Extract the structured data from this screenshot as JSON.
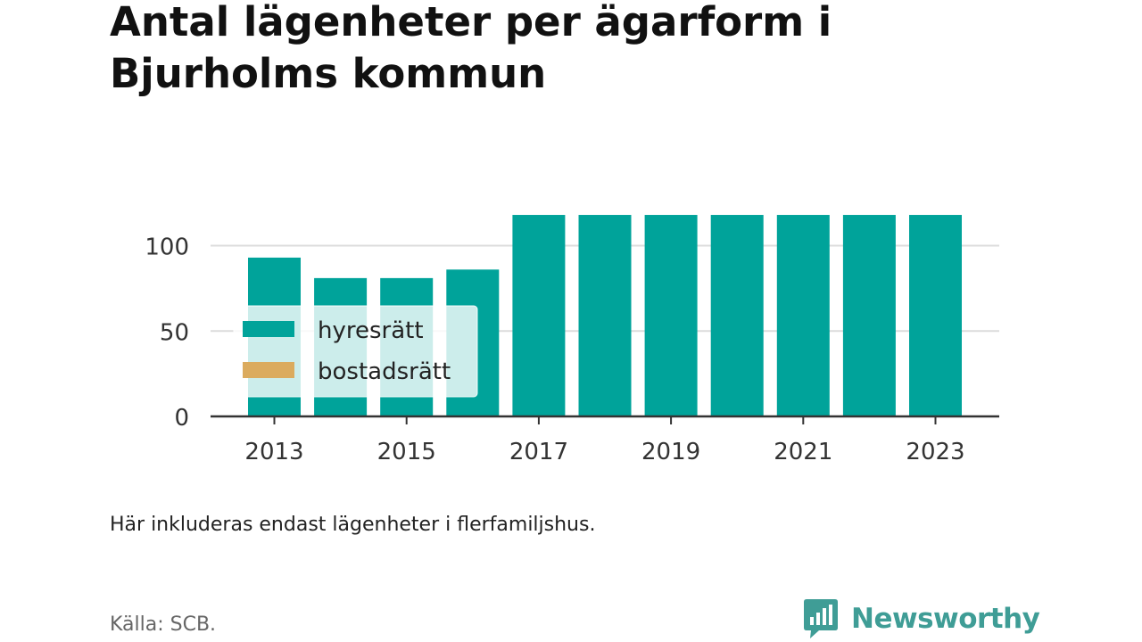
{
  "title": "Antal lägenheter per ägarform i Bjurholms kommun",
  "note": "Här inkluderas endast lägenheter i flerfamiljshus.",
  "source": "Källa: SCB.",
  "brand": {
    "name": "Newsworthy",
    "icon": "newsworthy-logo-icon",
    "color": "#3f9d96"
  },
  "chart_data": {
    "type": "bar",
    "stacked": true,
    "categories": [
      "2013",
      "2014",
      "2015",
      "2016",
      "2017",
      "2018",
      "2019",
      "2020",
      "2021",
      "2022",
      "2023"
    ],
    "x_tick_labels": [
      "2013",
      "2015",
      "2017",
      "2019",
      "2021",
      "2023"
    ],
    "series": [
      {
        "name": "hyresrätt",
        "color": "#00a39a",
        "values": [
          93,
          81,
          81,
          86,
          118,
          118,
          118,
          118,
          118,
          118,
          118
        ]
      },
      {
        "name": "bostadsrätt",
        "color": "#dbab5e",
        "values": [
          0,
          0,
          0,
          0,
          0,
          0,
          0,
          0,
          0,
          0,
          0
        ]
      }
    ],
    "y_ticks": [
      0,
      50,
      100
    ],
    "ylim": [
      0,
      118
    ],
    "grid": true,
    "legend_position": "left-middle"
  }
}
